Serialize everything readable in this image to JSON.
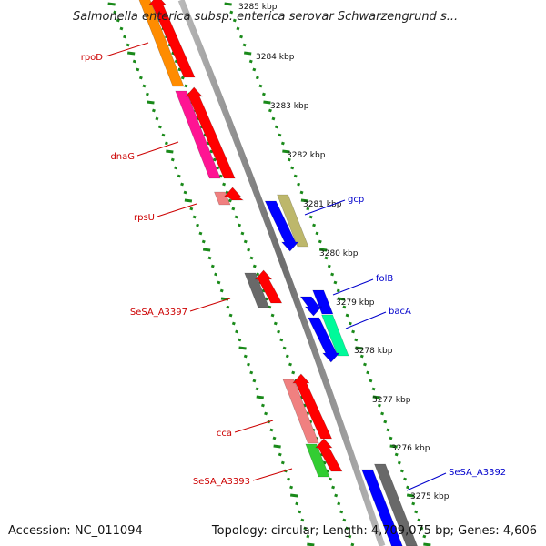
{
  "title": "Salmonella enterica subsp. enterica serovar Schwarzengrund s...",
  "footer": {
    "accession": "Accession: NC_011094",
    "summary": "Topology: circular; Length: 4,709,075 bp; Genes: 4,606"
  },
  "colors": {
    "reverse_label": "#cc0000",
    "forward_label": "#0000cc",
    "tick": "#1a8a1a",
    "backbone": "#888888"
  },
  "scale_labels": [
    "3285 kbp",
    "3284 kbp",
    "3283 kbp",
    "3282 kbp",
    "3281 kbp",
    "3280 kbp",
    "3279 kbp",
    "3278 kbp",
    "3277 kbp",
    "3276 kbp",
    "3275 kbp"
  ],
  "reverse_genes": [
    {
      "label": "rpoD",
      "color": "#ff8c00"
    },
    {
      "label": "dnaG",
      "color": "#ff1493"
    },
    {
      "label": "rpsU",
      "color": "#f08080"
    },
    {
      "label": "SeSA_A3397",
      "color": "#696969"
    },
    {
      "label": "cca",
      "color": "#f08080"
    },
    {
      "label": "SeSA_A3393",
      "color": "#32cd32"
    }
  ],
  "forward_genes": [
    {
      "label": "gcp",
      "color": "#bdb76b"
    },
    {
      "label": "folB",
      "color": "#0000ff"
    },
    {
      "label": "bacA",
      "color": "#00fa9a"
    },
    {
      "label": "SeSA_A3392",
      "color": "#696969"
    }
  ]
}
